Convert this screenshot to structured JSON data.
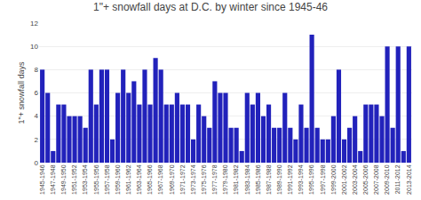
{
  "chart_data": {
    "type": "bar",
    "title": "1\"+ snowfall days at D.C. by winter since 1945-46",
    "ylabel": "1\"+ snowfall days",
    "categories": [
      "1945-1946",
      null,
      "1947-1948",
      null,
      "1949-1950",
      null,
      "1951-1952",
      null,
      "1953-1954",
      null,
      "1955-1956",
      null,
      "1957-1958",
      null,
      "1959-1960",
      null,
      "1961-1962",
      null,
      "1963-1964",
      null,
      "1965-1966",
      null,
      "1967-1968",
      null,
      "1969-1970",
      null,
      "1971-1972",
      null,
      "1973-1974",
      null,
      "1975-1976",
      null,
      "1977-1978",
      null,
      "1979-1980",
      null,
      "1981-1982",
      null,
      "1983-1984",
      null,
      "1985-1986",
      null,
      "1987-1988",
      null,
      "1989-1990",
      null,
      "1991-1992",
      null,
      "1993-1994",
      null,
      "1995-1996",
      null,
      "1997-1998",
      null,
      "1999-2000",
      null,
      "2001-2002",
      null,
      "2003-2004",
      null,
      "2005-2006",
      null,
      "2007-2008",
      null,
      "2009-2010",
      null,
      "2011-2012",
      null,
      "2013-2014"
    ],
    "values": [
      8,
      6,
      1,
      5,
      5,
      4,
      4,
      4,
      3,
      8,
      5,
      8,
      8,
      2,
      6,
      8,
      6,
      7,
      5,
      8,
      5,
      9,
      8,
      5,
      5,
      6,
      5,
      5,
      2,
      5,
      4,
      3,
      7,
      6,
      6,
      3,
      3,
      1,
      6,
      5,
      6,
      4,
      5,
      3,
      3,
      6,
      3,
      2,
      5,
      3,
      11,
      3,
      2,
      2,
      4,
      8,
      2,
      3,
      4,
      1,
      5,
      5,
      5,
      4,
      10,
      3,
      10,
      1,
      10
    ],
    "color": "#2222bb",
    "ylim": [
      0,
      12
    ],
    "yticks": [
      0,
      2,
      4,
      6,
      8,
      10,
      12
    ],
    "grid": true
  }
}
